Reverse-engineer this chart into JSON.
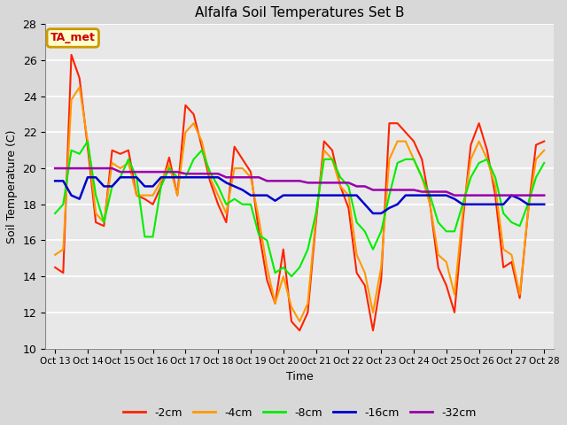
{
  "title": "Alfalfa Soil Temperatures Set B",
  "xlabel": "Time",
  "ylabel": "Soil Temperature (C)",
  "ylim": [
    10,
    28
  ],
  "bg_color": "#d8d8d8",
  "plot_bg": "#e8e8e8",
  "annotation_text": "TA_met",
  "annotation_bg": "#ffffcc",
  "annotation_border": "#cc9900",
  "annotation_text_color": "#cc0000",
  "x_tick_labels": [
    "Oct 13",
    "Oct 14",
    "Oct 15",
    "Oct 16",
    "Oct 17",
    "Oct 18",
    "Oct 19",
    "Oct 20",
    "Oct 21",
    "Oct 22",
    "Oct 23",
    "Oct 24",
    "Oct 25",
    "Oct 26",
    "Oct 27",
    "Oct 28"
  ],
  "legend_labels": [
    "-2cm",
    "-4cm",
    "-8cm",
    "-16cm",
    "-32cm"
  ],
  "legend_colors": [
    "#ff2200",
    "#ff9900",
    "#00ee00",
    "#0000cc",
    "#9900aa"
  ],
  "line_widths": [
    1.5,
    1.5,
    1.5,
    1.8,
    1.8
  ],
  "series_x": [
    0,
    0.25,
    0.5,
    0.75,
    1,
    1.25,
    1.5,
    1.75,
    2,
    2.25,
    2.5,
    2.75,
    3,
    3.25,
    3.5,
    3.75,
    4,
    4.25,
    4.5,
    4.75,
    5,
    5.25,
    5.5,
    5.75,
    6,
    6.25,
    6.5,
    6.75,
    7,
    7.25,
    7.5,
    7.75,
    8,
    8.25,
    8.5,
    8.75,
    9,
    9.25,
    9.5,
    9.75,
    10,
    10.25,
    10.5,
    10.75,
    11,
    11.25,
    11.5,
    11.75,
    12,
    12.25,
    12.5,
    12.75,
    13,
    13.25,
    13.5,
    13.75,
    14,
    14.25,
    14.5,
    14.75,
    15
  ],
  "m2cm": [
    14.5,
    14.2,
    26.3,
    25.0,
    21.2,
    17.0,
    16.8,
    21.0,
    20.8,
    21.0,
    18.5,
    18.3,
    18.0,
    19.0,
    20.6,
    18.5,
    23.5,
    23.0,
    21.2,
    19.3,
    18.0,
    17.0,
    21.2,
    20.5,
    19.8,
    16.5,
    13.8,
    12.5,
    15.5,
    11.5,
    11.0,
    12.0,
    17.0,
    21.5,
    21.0,
    19.0,
    17.8,
    14.2,
    13.5,
    11.0,
    13.8,
    22.5,
    22.5,
    22.0,
    21.5,
    20.5,
    18.0,
    14.5,
    13.5,
    12.0,
    17.0,
    21.3,
    22.5,
    21.0,
    18.5,
    14.5,
    14.8,
    12.8,
    17.5,
    21.3,
    21.5
  ],
  "m4cm": [
    15.2,
    15.5,
    23.8,
    24.5,
    21.5,
    17.5,
    17.0,
    20.3,
    20.0,
    20.3,
    18.5,
    18.5,
    18.5,
    19.3,
    20.2,
    18.5,
    22.0,
    22.5,
    21.5,
    19.5,
    18.5,
    17.5,
    20.0,
    20.0,
    19.5,
    17.2,
    14.5,
    12.5,
    14.0,
    12.3,
    11.5,
    12.5,
    17.3,
    21.0,
    20.5,
    19.0,
    18.5,
    15.2,
    14.2,
    12.0,
    14.5,
    20.5,
    21.5,
    21.5,
    20.5,
    19.5,
    18.0,
    15.2,
    14.8,
    13.0,
    17.5,
    20.5,
    21.5,
    20.5,
    19.0,
    15.5,
    15.2,
    13.0,
    17.5,
    20.5,
    21.0
  ],
  "m8cm": [
    17.5,
    18.0,
    21.0,
    20.8,
    21.5,
    18.5,
    17.0,
    19.0,
    19.5,
    20.5,
    19.5,
    16.2,
    16.2,
    19.0,
    20.0,
    19.5,
    19.5,
    20.5,
    21.0,
    19.8,
    19.0,
    18.0,
    18.3,
    18.0,
    18.0,
    16.3,
    16.0,
    14.2,
    14.5,
    14.0,
    14.5,
    15.5,
    17.5,
    20.5,
    20.5,
    19.5,
    19.0,
    17.0,
    16.5,
    15.5,
    16.5,
    18.5,
    20.3,
    20.5,
    20.5,
    19.5,
    18.5,
    17.0,
    16.5,
    16.5,
    18.0,
    19.5,
    20.3,
    20.5,
    19.5,
    17.5,
    17.0,
    16.8,
    18.0,
    19.5,
    20.3
  ],
  "m16cm": [
    19.3,
    19.3,
    18.5,
    18.3,
    19.5,
    19.5,
    19.0,
    19.0,
    19.5,
    19.5,
    19.5,
    19.0,
    19.0,
    19.5,
    19.5,
    19.5,
    19.5,
    19.5,
    19.5,
    19.5,
    19.5,
    19.2,
    19.0,
    18.8,
    18.5,
    18.5,
    18.5,
    18.2,
    18.5,
    18.5,
    18.5,
    18.5,
    18.5,
    18.5,
    18.5,
    18.5,
    18.5,
    18.5,
    18.0,
    17.5,
    17.5,
    17.8,
    18.0,
    18.5,
    18.5,
    18.5,
    18.5,
    18.5,
    18.5,
    18.3,
    18.0,
    18.0,
    18.0,
    18.0,
    18.0,
    18.0,
    18.5,
    18.3,
    18.0,
    18.0,
    18.0
  ],
  "m32cm": [
    20.0,
    20.0,
    20.0,
    20.0,
    20.0,
    20.0,
    20.0,
    20.0,
    19.8,
    19.8,
    19.8,
    19.8,
    19.8,
    19.8,
    19.8,
    19.8,
    19.7,
    19.7,
    19.7,
    19.7,
    19.7,
    19.5,
    19.5,
    19.5,
    19.5,
    19.5,
    19.3,
    19.3,
    19.3,
    19.3,
    19.3,
    19.2,
    19.2,
    19.2,
    19.2,
    19.2,
    19.2,
    19.0,
    19.0,
    18.8,
    18.8,
    18.8,
    18.8,
    18.8,
    18.8,
    18.7,
    18.7,
    18.7,
    18.7,
    18.5,
    18.5,
    18.5,
    18.5,
    18.5,
    18.5,
    18.5,
    18.5,
    18.5,
    18.5,
    18.5,
    18.5
  ]
}
